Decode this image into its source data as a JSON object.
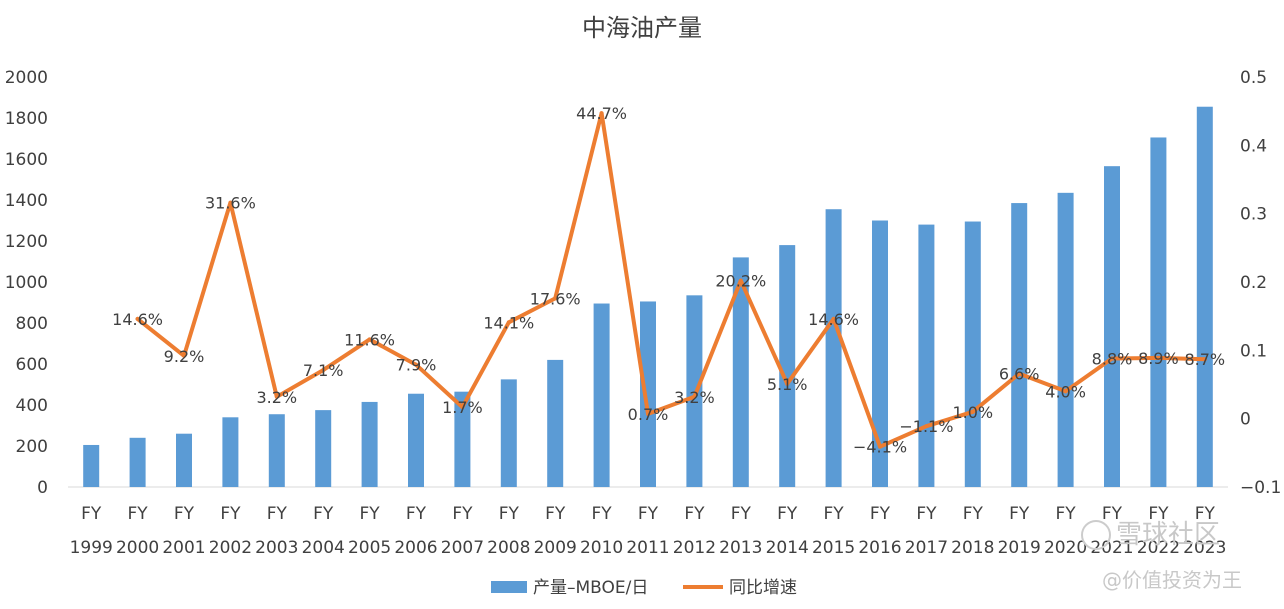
{
  "chart_data": {
    "type": "bar+line",
    "title": "中海油产量",
    "categories_top": [
      "FY",
      "FY",
      "FY",
      "FY",
      "FY",
      "FY",
      "FY",
      "FY",
      "FY",
      "FY",
      "FY",
      "FY",
      "FY",
      "FY",
      "FY",
      "FY",
      "FY",
      "FY",
      "FY",
      "FY",
      "FY",
      "FY",
      "FY",
      "FY",
      "FY"
    ],
    "categories": [
      "1999",
      "2000",
      "2001",
      "2002",
      "2003",
      "2004",
      "2005",
      "2006",
      "2007",
      "2008",
      "2009",
      "2010",
      "2011",
      "2012",
      "2013",
      "2014",
      "2015",
      "2016",
      "2017",
      "2018",
      "2019",
      "2020",
      "2021",
      "2022",
      "2023"
    ],
    "series": [
      {
        "name": "产量–MBOE/日",
        "type": "bar",
        "axis": "left",
        "color": "#5b9bd5",
        "values": [
          205,
          240,
          260,
          340,
          355,
          375,
          415,
          455,
          465,
          525,
          620,
          895,
          905,
          935,
          1120,
          1180,
          1355,
          1300,
          1280,
          1295,
          1385,
          1435,
          1565,
          1705,
          1855
        ]
      },
      {
        "name": "同比增速",
        "type": "line",
        "axis": "right",
        "color": "#ed7d31",
        "values": [
          null,
          0.146,
          0.092,
          0.316,
          0.032,
          0.071,
          0.116,
          0.079,
          0.017,
          0.141,
          0.176,
          0.447,
          0.007,
          0.032,
          0.202,
          0.051,
          0.146,
          -0.041,
          -0.011,
          0.01,
          0.066,
          0.04,
          0.088,
          0.089,
          0.087
        ],
        "labels": [
          "",
          "14.6%",
          "9.2%",
          "31.6%",
          "3.2%",
          "7.1%",
          "11.6%",
          "7.9%",
          "1.7%",
          "14.1%",
          "17.6%",
          "44.7%",
          "0.7%",
          "3.2%",
          "20.2%",
          "5.1%",
          "14.6%",
          "−4.1%",
          "−1.1%",
          "1.0%",
          "6.6%",
          "4.0%",
          "8.8%",
          "8.9%",
          "8.7%"
        ]
      }
    ],
    "y_left": {
      "ylim": [
        0,
        2000
      ],
      "ticks": [
        "0",
        "200",
        "400",
        "600",
        "800",
        "1000",
        "1200",
        "1400",
        "1600",
        "1800",
        "2000"
      ]
    },
    "y_right": {
      "ylim": [
        -0.1,
        0.5
      ],
      "ticks": [
        "−0.1",
        "0",
        "0.1",
        "0.2",
        "0.3",
        "0.4",
        "0.5"
      ]
    },
    "grid": false,
    "legend": "bottom"
  },
  "watermark": {
    "line1": "雪球社区",
    "line2": "@价值投资为王"
  }
}
